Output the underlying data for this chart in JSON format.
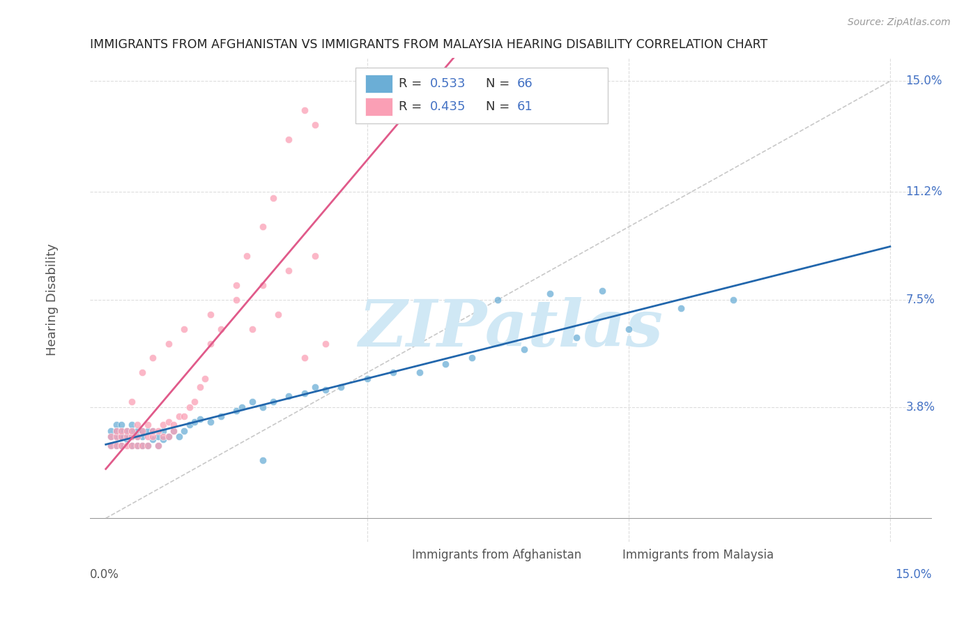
{
  "title": "IMMIGRANTS FROM AFGHANISTAN VS IMMIGRANTS FROM MALAYSIA HEARING DISABILITY CORRELATION CHART",
  "source": "Source: ZipAtlas.com",
  "ylabel": "Hearing Disability",
  "right_yticks": [
    "15.0%",
    "11.2%",
    "7.5%",
    "3.8%"
  ],
  "right_ytick_vals": [
    0.15,
    0.112,
    0.075,
    0.038
  ],
  "xlim": [
    0.0,
    0.15
  ],
  "ylim": [
    0.0,
    0.15
  ],
  "afghanistan_color": "#6baed6",
  "afghanistan_line_color": "#2166ac",
  "malaysia_color": "#fa9fb5",
  "malaysia_line_color": "#e05a8a",
  "diagonal_color": "#bbbbbb",
  "grid_color": "#dddddd",
  "afghanistan_R": 0.533,
  "afghanistan_N": 66,
  "malaysia_R": 0.435,
  "malaysia_N": 61,
  "legend_label_afghanistan": "Immigrants from Afghanistan",
  "legend_label_malaysia": "Immigrants from Malaysia",
  "watermark_text": "ZIPatlas",
  "watermark_color": "#d0e8f5",
  "afg_x": [
    0.001,
    0.001,
    0.001,
    0.002,
    0.002,
    0.002,
    0.002,
    0.003,
    0.003,
    0.003,
    0.003,
    0.003,
    0.004,
    0.004,
    0.004,
    0.005,
    0.005,
    0.005,
    0.005,
    0.006,
    0.006,
    0.006,
    0.007,
    0.007,
    0.007,
    0.008,
    0.008,
    0.009,
    0.009,
    0.01,
    0.01,
    0.011,
    0.011,
    0.012,
    0.013,
    0.014,
    0.015,
    0.016,
    0.017,
    0.018,
    0.02,
    0.022,
    0.025,
    0.026,
    0.028,
    0.03,
    0.032,
    0.035,
    0.038,
    0.04,
    0.042,
    0.045,
    0.05,
    0.055,
    0.06,
    0.065,
    0.07,
    0.08,
    0.09,
    0.1,
    0.11,
    0.12,
    0.03,
    0.075,
    0.085,
    0.095
  ],
  "afg_y": [
    0.025,
    0.028,
    0.03,
    0.025,
    0.028,
    0.032,
    0.03,
    0.025,
    0.028,
    0.03,
    0.032,
    0.028,
    0.027,
    0.03,
    0.028,
    0.025,
    0.028,
    0.03,
    0.032,
    0.025,
    0.028,
    0.03,
    0.025,
    0.028,
    0.03,
    0.025,
    0.03,
    0.027,
    0.03,
    0.025,
    0.028,
    0.027,
    0.03,
    0.028,
    0.03,
    0.028,
    0.03,
    0.032,
    0.033,
    0.034,
    0.033,
    0.035,
    0.037,
    0.038,
    0.04,
    0.038,
    0.04,
    0.042,
    0.043,
    0.045,
    0.044,
    0.045,
    0.048,
    0.05,
    0.05,
    0.053,
    0.055,
    0.058,
    0.062,
    0.065,
    0.072,
    0.075,
    0.02,
    0.075,
    0.077,
    0.078
  ],
  "mal_x": [
    0.001,
    0.001,
    0.002,
    0.002,
    0.002,
    0.003,
    0.003,
    0.003,
    0.004,
    0.004,
    0.004,
    0.005,
    0.005,
    0.005,
    0.006,
    0.006,
    0.006,
    0.007,
    0.007,
    0.008,
    0.008,
    0.008,
    0.009,
    0.009,
    0.01,
    0.01,
    0.011,
    0.011,
    0.012,
    0.012,
    0.013,
    0.013,
    0.014,
    0.015,
    0.016,
    0.017,
    0.018,
    0.019,
    0.02,
    0.022,
    0.025,
    0.027,
    0.03,
    0.032,
    0.035,
    0.038,
    0.04,
    0.028,
    0.033,
    0.038,
    0.042,
    0.005,
    0.007,
    0.009,
    0.012,
    0.015,
    0.02,
    0.025,
    0.03,
    0.035,
    0.04
  ],
  "mal_y": [
    0.025,
    0.028,
    0.025,
    0.028,
    0.03,
    0.025,
    0.028,
    0.03,
    0.025,
    0.028,
    0.03,
    0.025,
    0.028,
    0.03,
    0.025,
    0.028,
    0.032,
    0.025,
    0.03,
    0.025,
    0.028,
    0.032,
    0.028,
    0.03,
    0.025,
    0.03,
    0.028,
    0.032,
    0.028,
    0.033,
    0.03,
    0.032,
    0.035,
    0.035,
    0.038,
    0.04,
    0.045,
    0.048,
    0.06,
    0.065,
    0.08,
    0.09,
    0.1,
    0.11,
    0.13,
    0.14,
    0.135,
    0.065,
    0.07,
    0.055,
    0.06,
    0.04,
    0.05,
    0.055,
    0.06,
    0.065,
    0.07,
    0.075,
    0.08,
    0.085,
    0.09
  ]
}
